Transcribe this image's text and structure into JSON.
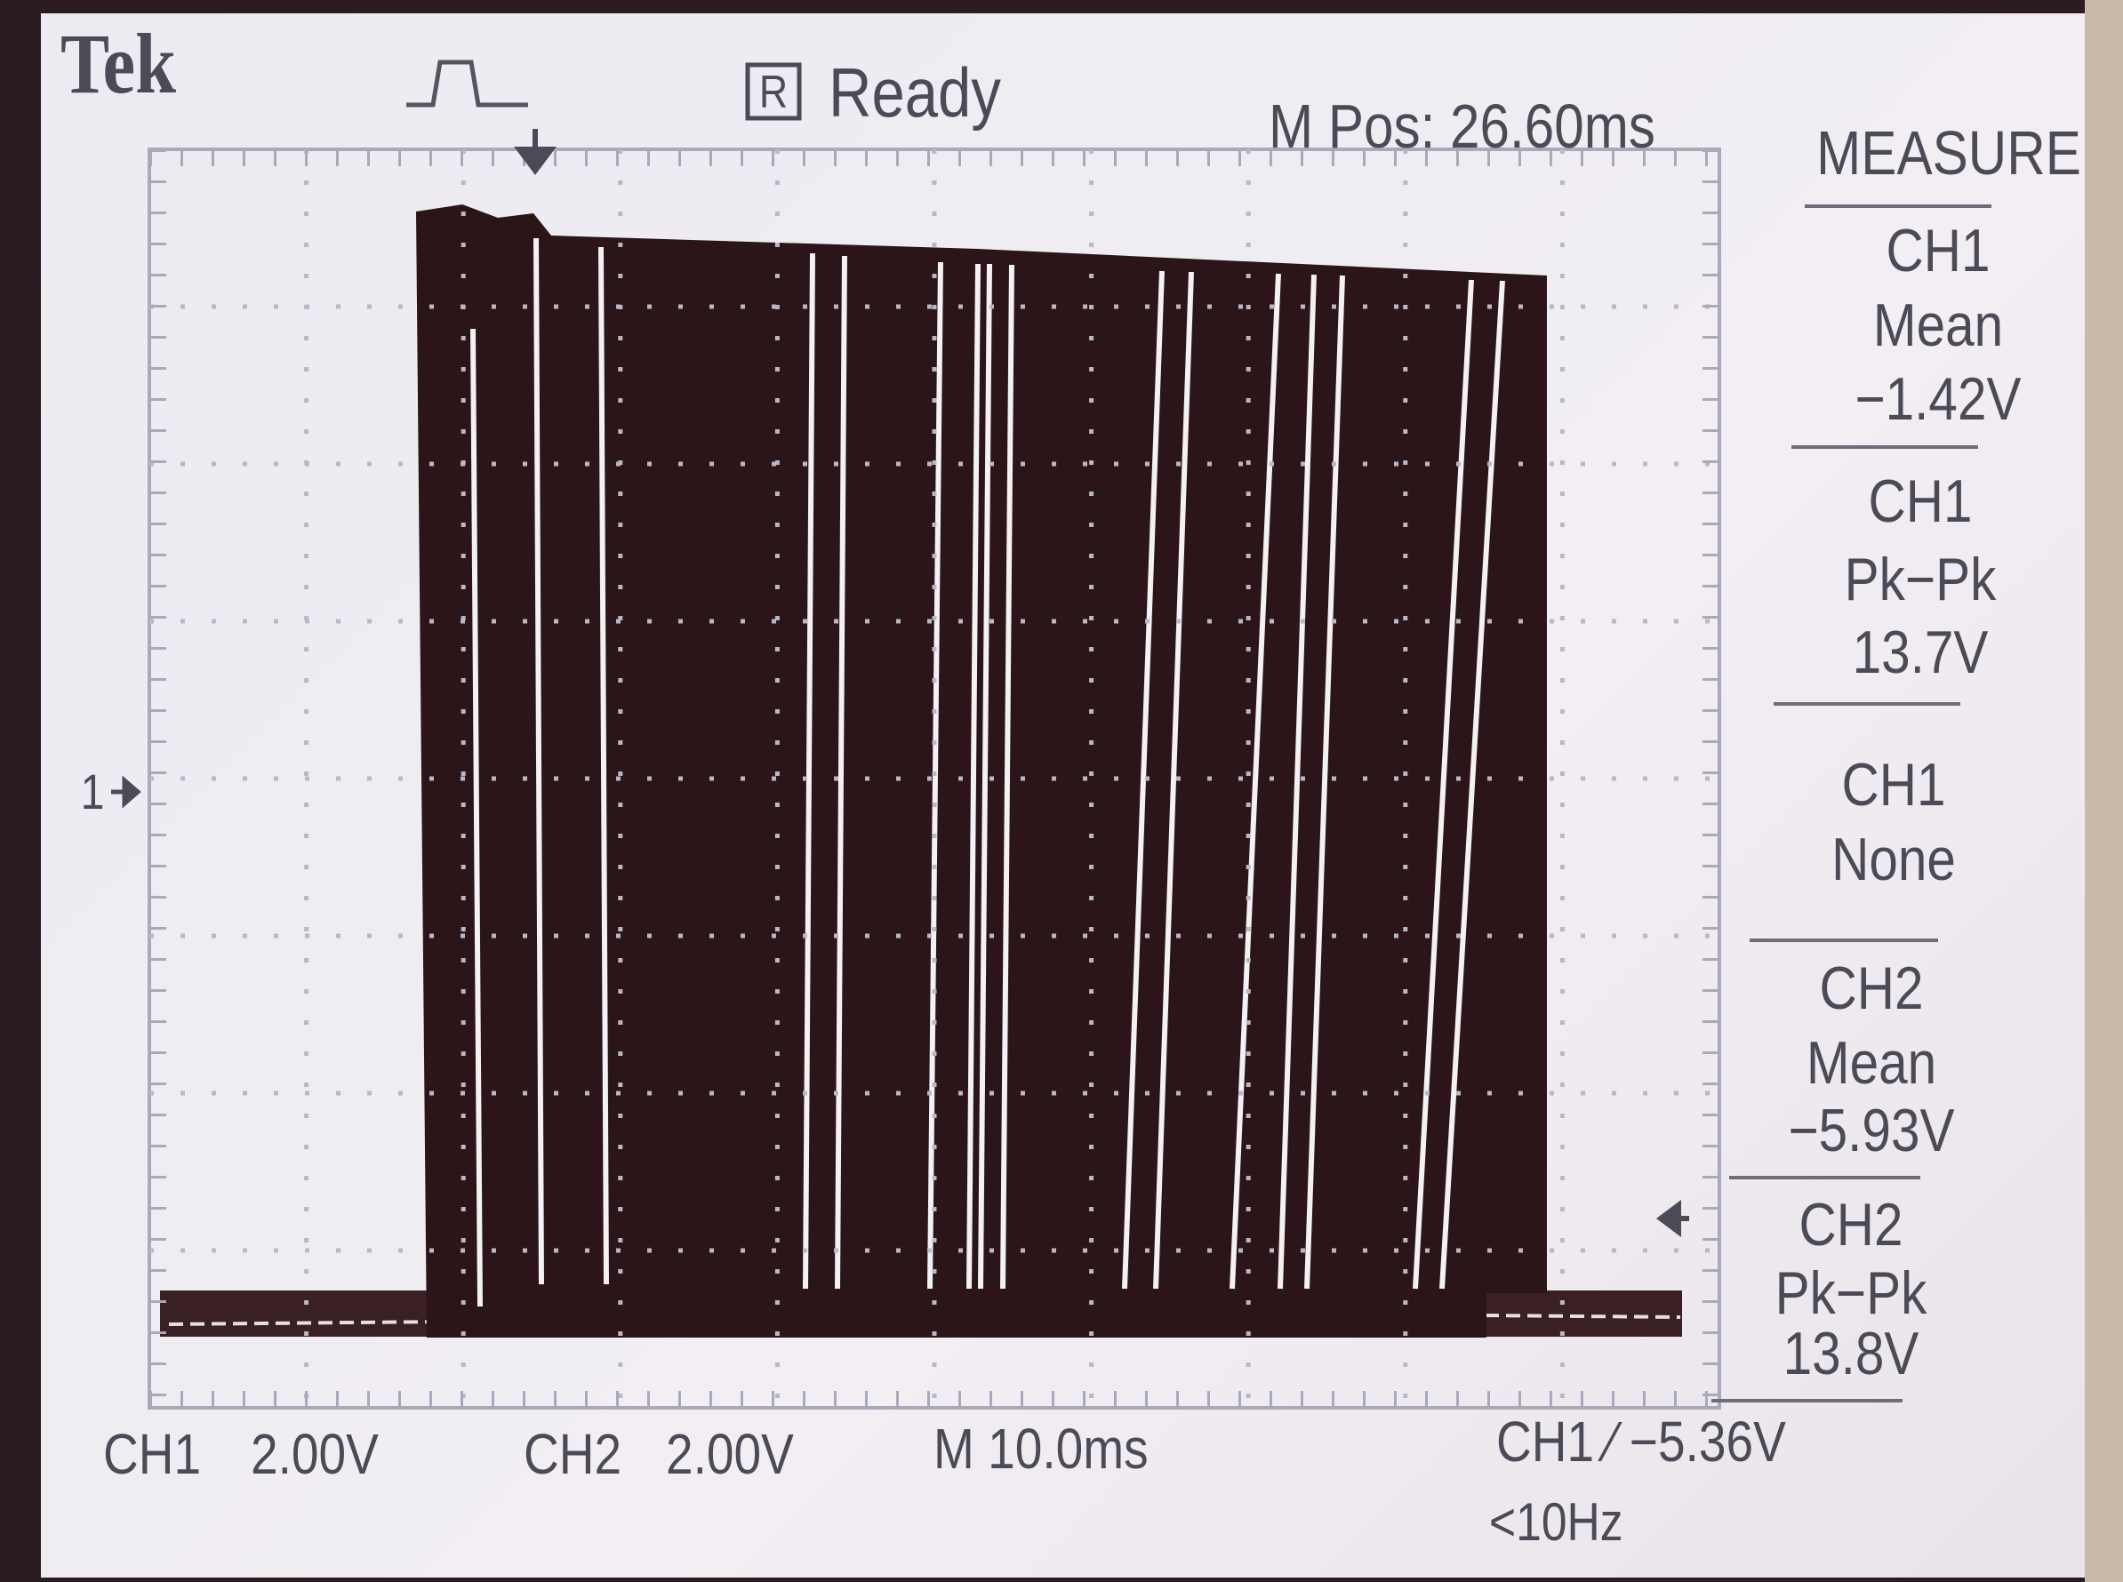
{
  "header": {
    "brand": "Tek",
    "state_icon": "R",
    "status": "Ready",
    "position": "M Pos: 26.60ms"
  },
  "channel_marker": "1",
  "measure": {
    "title": "MEASURE",
    "items": [
      {
        "source": "CH1",
        "type": "Mean",
        "value": "−1.42V"
      },
      {
        "source": "CH1",
        "type": "Pk−Pk",
        "value": "13.7V"
      },
      {
        "source": "CH1",
        "type": "None"
      },
      {
        "source": "CH2",
        "type": "Mean",
        "value": "−5.93V"
      },
      {
        "source": "CH2",
        "type": "Pk−Pk",
        "value": "13.8V"
      }
    ]
  },
  "footer": {
    "ch1": "CH1",
    "ch1_scale": "2.00V",
    "ch2": "CH2",
    "ch2_scale": "2.00V",
    "timebase": "M 10.0ms",
    "trigger": "CH1 ⁄ −5.36V",
    "trigger_freq": "<10Hz"
  }
}
